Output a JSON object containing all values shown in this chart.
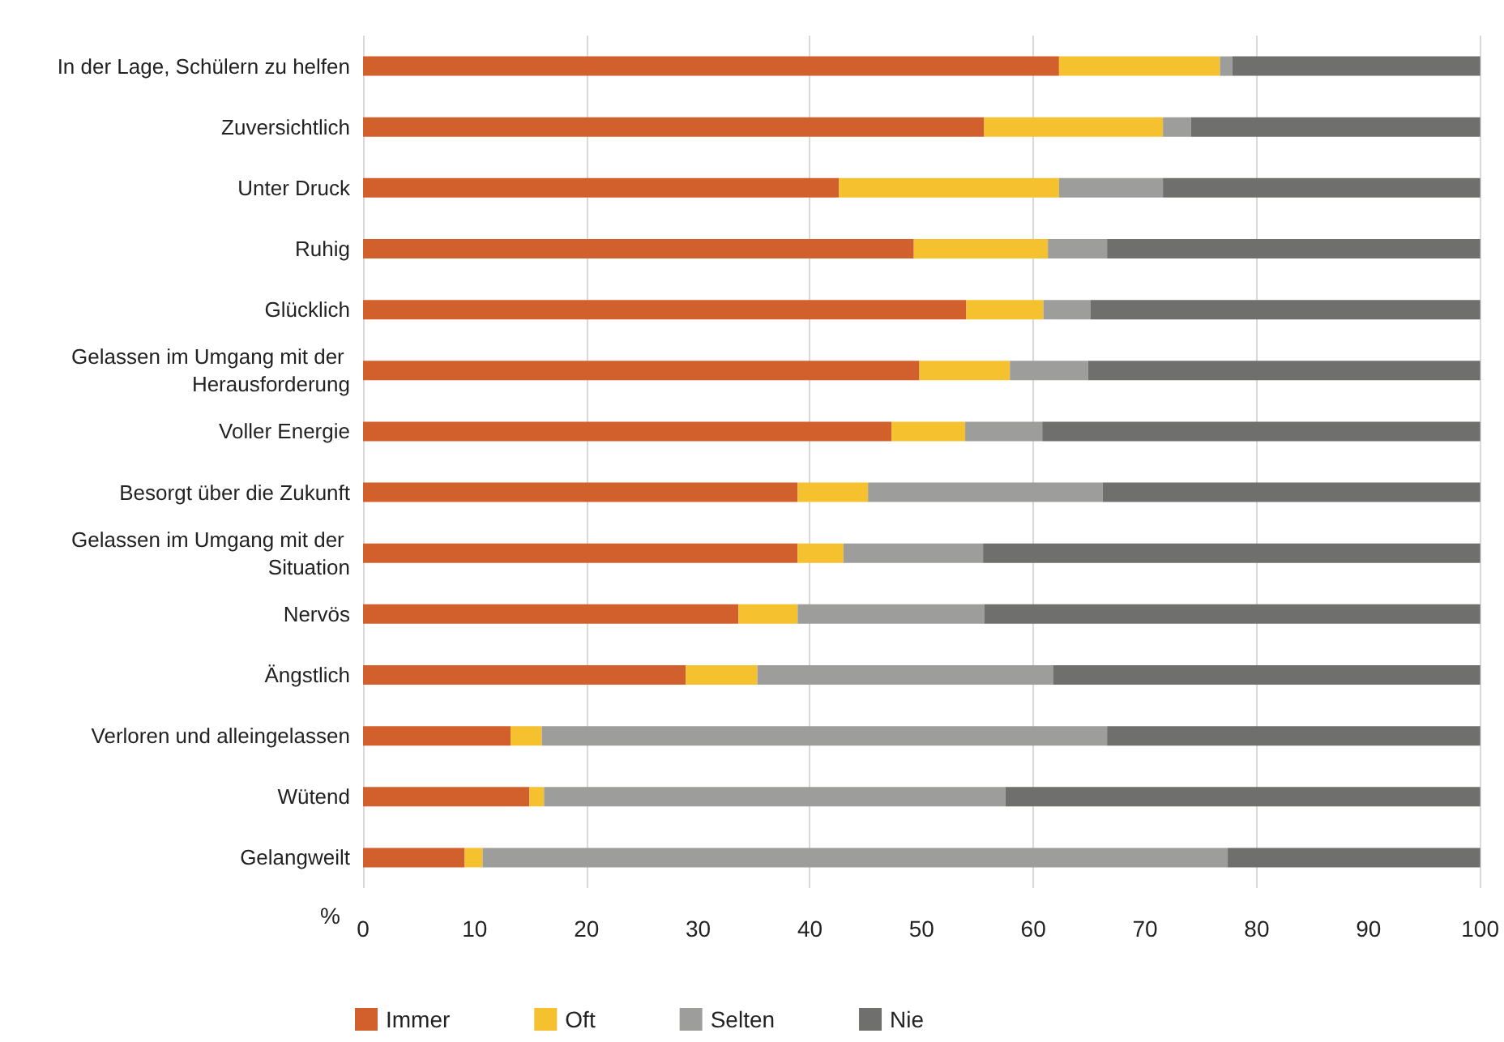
{
  "chart_data": {
    "type": "bar",
    "orientation": "horizontal",
    "stacked": true,
    "xlabel": "%",
    "categories": [
      "In der Lage, Schülern zu helfen",
      "Zuversichtlich",
      "Unter Druck",
      "Ruhig",
      "Glücklich",
      "Gelassen im Umgang mit der Herausforderung",
      "Voller Energie",
      "Besorgt über die Zukunft",
      "Gelassen im Umgang mit der Situation",
      "Nervös",
      "Ängstlich",
      "Verloren und alleingelassen",
      "Wütend",
      "Gelangweilt"
    ],
    "series": [
      {
        "name": "Immer",
        "color": "#d2602c",
        "values": [
          62.3,
          55.6,
          42.6,
          49.3,
          54.0,
          49.8,
          47.3,
          38.9,
          38.9,
          33.6,
          28.9,
          13.2,
          14.9,
          9.1
        ]
      },
      {
        "name": "Oft",
        "color": "#f6c12f",
        "values": [
          14.4,
          16.0,
          19.7,
          12.0,
          6.9,
          8.1,
          6.6,
          6.3,
          4.1,
          5.3,
          6.4,
          2.8,
          1.3,
          1.6
        ]
      },
      {
        "name": "Selten",
        "color": "#9d9d9c",
        "values": [
          1.1,
          2.5,
          9.3,
          5.3,
          4.2,
          7.0,
          6.9,
          21.0,
          12.5,
          16.7,
          26.5,
          50.6,
          41.3,
          66.7
        ]
      },
      {
        "name": "Nie",
        "color": "#6f6f6e",
        "values": [
          22.2,
          25.9,
          28.4,
          33.4,
          34.9,
          35.1,
          39.2,
          33.8,
          44.5,
          44.4,
          38.2,
          33.4,
          42.5,
          22.6
        ]
      }
    ],
    "xlim": [
      0,
      100
    ],
    "xticks": [
      0,
      10,
      20,
      30,
      40,
      50,
      60,
      70,
      80,
      90,
      100
    ],
    "grid": "x",
    "legend": "bottom"
  }
}
